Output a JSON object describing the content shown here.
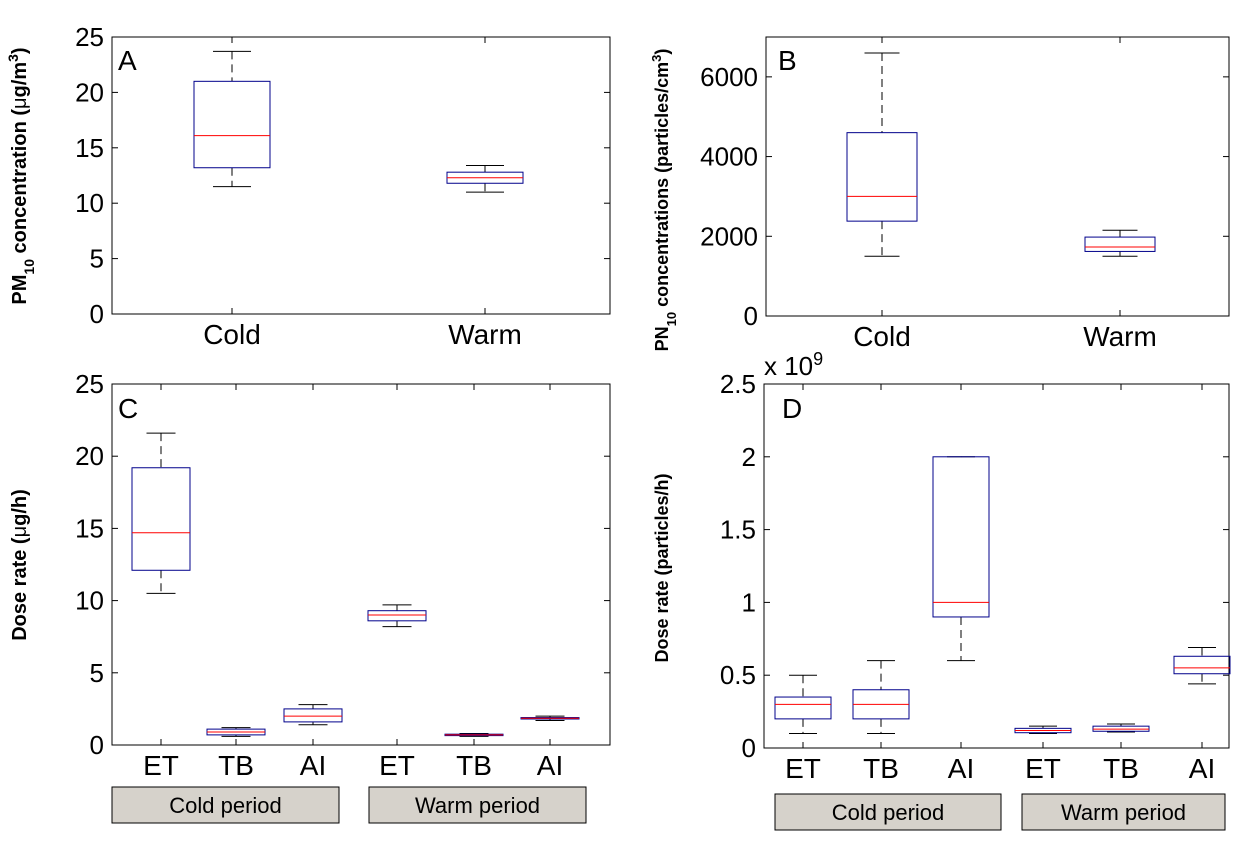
{
  "chart_data": [
    {
      "id": "A",
      "type": "box",
      "panel_label": "A",
      "ylabel": {
        "pre": "PM",
        "sub": "10",
        "mid": " concentration (",
        "mu": "μ",
        "post": "g/m",
        "sup": "3",
        "end": ")"
      },
      "ylim": [
        0,
        25
      ],
      "yticks": [
        "0",
        "5",
        "10",
        "15",
        "20",
        "25"
      ],
      "categories": [
        "Cold",
        "Warm"
      ],
      "boxes": [
        {
          "category": "Cold",
          "whisker_low": 11.5,
          "q1": 13.2,
          "median": 16.1,
          "q3": 21.0,
          "whisker_high": 23.7
        },
        {
          "category": "Warm",
          "whisker_low": 11.0,
          "q1": 11.8,
          "median": 12.3,
          "q3": 12.8,
          "whisker_high": 13.4
        }
      ],
      "colors": {
        "box": "#00008b",
        "median": "#ff0000",
        "whisker": "#000000"
      }
    },
    {
      "id": "B",
      "type": "box",
      "panel_label": "B",
      "ylabel": {
        "pre": "PN",
        "sub": "10",
        "mid": " concentrations (particles/cm",
        "sup": "3",
        "end": ")"
      },
      "ylim": [
        0,
        7000
      ],
      "yticks": [
        "0",
        "2000",
        "4000",
        "6000"
      ],
      "categories": [
        "Cold",
        "Warm"
      ],
      "boxes": [
        {
          "category": "Cold",
          "whisker_low": 1500,
          "q1": 2380,
          "median": 3000,
          "q3": 4600,
          "whisker_high": 6600
        },
        {
          "category": "Warm",
          "whisker_low": 1500,
          "q1": 1620,
          "median": 1730,
          "q3": 1980,
          "whisker_high": 2150
        }
      ],
      "colors": {
        "box": "#00008b",
        "median": "#ff0000",
        "whisker": "#000000"
      }
    },
    {
      "id": "C",
      "type": "box",
      "panel_label": "C",
      "ylabel": {
        "pre": "Dose rate (",
        "mu": "μ",
        "post": "g/h)"
      },
      "ylim": [
        0,
        25
      ],
      "yticks": [
        "0",
        "5",
        "10",
        "15",
        "20",
        "25"
      ],
      "categories": [
        "ET",
        "TB",
        "AI",
        "ET",
        "TB",
        "AI"
      ],
      "groups": [
        "Cold period",
        "Warm period"
      ],
      "boxes": [
        {
          "category": "ET",
          "group": "Cold period",
          "whisker_low": 10.5,
          "q1": 12.1,
          "median": 14.7,
          "q3": 19.2,
          "whisker_high": 21.6
        },
        {
          "category": "TB",
          "group": "Cold period",
          "whisker_low": 0.6,
          "q1": 0.7,
          "median": 0.9,
          "q3": 1.1,
          "whisker_high": 1.2
        },
        {
          "category": "AI",
          "group": "Cold period",
          "whisker_low": 1.4,
          "q1": 1.6,
          "median": 2.0,
          "q3": 2.5,
          "whisker_high": 2.8
        },
        {
          "category": "ET",
          "group": "Warm period",
          "whisker_low": 8.2,
          "q1": 8.6,
          "median": 9.0,
          "q3": 9.3,
          "whisker_high": 9.7
        },
        {
          "category": "TB",
          "group": "Warm period",
          "whisker_low": 0.6,
          "q1": 0.65,
          "median": 0.7,
          "q3": 0.75,
          "whisker_high": 0.8
        },
        {
          "category": "AI",
          "group": "Warm period",
          "whisker_low": 1.7,
          "q1": 1.8,
          "median": 1.85,
          "q3": 1.9,
          "whisker_high": 2.0
        }
      ],
      "colors": {
        "box": "#00008b",
        "median": "#ff0000",
        "whisker": "#000000",
        "group_fill": "#d6d2cb"
      }
    },
    {
      "id": "D",
      "type": "box",
      "panel_label": "D",
      "ylabel": {
        "pre": "Dose rate (particles/h)"
      },
      "ylim": [
        0,
        2.5
      ],
      "yticks": [
        "0",
        "0.5",
        "1",
        "1.5",
        "2",
        "2.5"
      ],
      "exponent": {
        "base": "x 10",
        "sup": "9"
      },
      "categories": [
        "ET",
        "TB",
        "AI",
        "ET",
        "TB",
        "AI"
      ],
      "groups": [
        "Cold period",
        "Warm period"
      ],
      "boxes": [
        {
          "category": "ET",
          "group": "Cold period",
          "whisker_low": 0.1,
          "q1": 0.2,
          "median": 0.3,
          "q3": 0.35,
          "whisker_high": 0.5
        },
        {
          "category": "TB",
          "group": "Cold period",
          "whisker_low": 0.1,
          "q1": 0.2,
          "median": 0.3,
          "q3": 0.4,
          "whisker_high": 0.6
        },
        {
          "category": "AI",
          "group": "Cold period",
          "whisker_low": 0.6,
          "q1": 0.9,
          "median": 1.0,
          "q3": 2.0,
          "whisker_high": 2.0
        },
        {
          "category": "ET",
          "group": "Warm period",
          "whisker_low": 0.1,
          "q1": 0.105,
          "median": 0.12,
          "q3": 0.135,
          "whisker_high": 0.15
        },
        {
          "category": "TB",
          "group": "Warm period",
          "whisker_low": 0.11,
          "q1": 0.115,
          "median": 0.13,
          "q3": 0.15,
          "whisker_high": 0.165
        },
        {
          "category": "AI",
          "group": "Warm period",
          "whisker_low": 0.44,
          "q1": 0.51,
          "median": 0.55,
          "q3": 0.63,
          "whisker_high": 0.69
        }
      ],
      "colors": {
        "box": "#00008b",
        "median": "#ff0000",
        "whisker": "#000000",
        "group_fill": "#d6d2cb"
      }
    }
  ]
}
